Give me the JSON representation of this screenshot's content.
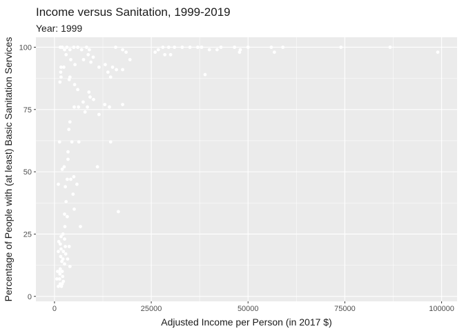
{
  "chart_data": {
    "type": "scatter",
    "title": "Income versus Sanitation, 1999-2019",
    "subtitle": "Year: 1999",
    "xlabel": "Adjusted Income per Person (in 2017 $)",
    "ylabel": "Percentage of People with (at least) Basic Sanitation Services",
    "xlim": [
      -4800,
      104000
    ],
    "ylim": [
      -2,
      104
    ],
    "x_ticks": [
      0,
      25000,
      50000,
      75000,
      100000
    ],
    "x_tick_labels": [
      "0",
      "25000",
      "50000",
      "75000",
      "100000"
    ],
    "y_ticks": [
      0,
      25,
      50,
      75,
      100
    ],
    "y_tick_labels": [
      "0",
      "25",
      "50",
      "75",
      "100"
    ],
    "grid": true,
    "legend": "none",
    "colors": {
      "panel_bg": "#ebebeb",
      "grid": "#ffffff",
      "point": "#ffffff"
    },
    "points": [
      [
        1500,
        100
      ],
      [
        1700,
        92
      ],
      [
        2000,
        100
      ],
      [
        2600,
        99
      ],
      [
        3200,
        100
      ],
      [
        4000,
        99
      ],
      [
        5000,
        100
      ],
      [
        6000,
        100
      ],
      [
        7000,
        99
      ],
      [
        8300,
        100
      ],
      [
        9000,
        99
      ],
      [
        15800,
        100
      ],
      [
        17600,
        99
      ],
      [
        26800,
        99
      ],
      [
        28000,
        100
      ],
      [
        29500,
        100
      ],
      [
        31000,
        100
      ],
      [
        33000,
        100
      ],
      [
        35000,
        100
      ],
      [
        37000,
        100
      ],
      [
        38000,
        100
      ],
      [
        40000,
        99
      ],
      [
        42000,
        99
      ],
      [
        43000,
        100
      ],
      [
        46500,
        100
      ],
      [
        48000,
        99
      ],
      [
        50000,
        100
      ],
      [
        56000,
        100
      ],
      [
        59000,
        100
      ],
      [
        74000,
        100
      ],
      [
        86700,
        100
      ],
      [
        26000,
        98
      ],
      [
        28500,
        97
      ],
      [
        30000,
        97
      ],
      [
        38900,
        89
      ],
      [
        47800,
        98
      ],
      [
        56800,
        98
      ],
      [
        99000,
        98
      ],
      [
        18500,
        98
      ],
      [
        19500,
        95
      ],
      [
        3000,
        97
      ],
      [
        4200,
        95
      ],
      [
        5300,
        93
      ],
      [
        2400,
        92
      ],
      [
        1600,
        90
      ],
      [
        1700,
        88
      ],
      [
        4000,
        88
      ],
      [
        5200,
        85
      ],
      [
        8700,
        97
      ],
      [
        10000,
        96
      ],
      [
        7500,
        95
      ],
      [
        9400,
        94
      ],
      [
        11500,
        92
      ],
      [
        13100,
        93
      ],
      [
        13800,
        90
      ],
      [
        15000,
        92
      ],
      [
        14500,
        88
      ],
      [
        16000,
        91
      ],
      [
        17600,
        91
      ],
      [
        1400,
        86
      ],
      [
        3800,
        87
      ],
      [
        6000,
        83
      ],
      [
        8900,
        82
      ],
      [
        9200,
        80
      ],
      [
        10100,
        79
      ],
      [
        7400,
        78
      ],
      [
        8500,
        76
      ],
      [
        6200,
        76
      ],
      [
        5100,
        76
      ],
      [
        7900,
        74
      ],
      [
        11500,
        73
      ],
      [
        13000,
        77
      ],
      [
        14200,
        76
      ],
      [
        17600,
        77
      ],
      [
        14500,
        62
      ],
      [
        11100,
        52
      ],
      [
        16500,
        34
      ],
      [
        6300,
        62
      ],
      [
        4000,
        70
      ],
      [
        3700,
        67
      ],
      [
        4500,
        62
      ],
      [
        1300,
        62
      ],
      [
        3500,
        58
      ],
      [
        3500,
        55
      ],
      [
        2500,
        52
      ],
      [
        2000,
        51
      ],
      [
        1000,
        45
      ],
      [
        5800,
        45
      ],
      [
        5000,
        48
      ],
      [
        4200,
        47
      ],
      [
        3300,
        47
      ],
      [
        2800,
        44
      ],
      [
        4800,
        41
      ],
      [
        3000,
        38
      ],
      [
        5100,
        35
      ],
      [
        2600,
        33
      ],
      [
        3300,
        32
      ],
      [
        2700,
        28
      ],
      [
        6700,
        28
      ],
      [
        2200,
        25
      ],
      [
        1700,
        24
      ],
      [
        2600,
        23
      ],
      [
        1100,
        22
      ],
      [
        1500,
        21
      ],
      [
        2800,
        20
      ],
      [
        3800,
        20
      ],
      [
        1700,
        19
      ],
      [
        1000,
        18
      ],
      [
        2300,
        18
      ],
      [
        2900,
        17
      ],
      [
        1600,
        16
      ],
      [
        2200,
        15
      ],
      [
        3400,
        15
      ],
      [
        1900,
        14
      ],
      [
        2600,
        13
      ],
      [
        4000,
        12
      ],
      [
        1500,
        11
      ],
      [
        800,
        10
      ],
      [
        1200,
        10
      ],
      [
        2000,
        10
      ],
      [
        1400,
        9
      ],
      [
        2100,
        8
      ],
      [
        600,
        7
      ],
      [
        1300,
        7
      ],
      [
        2300,
        6
      ],
      [
        1500,
        5
      ],
      [
        2000,
        5
      ],
      [
        1800,
        4
      ],
      [
        1000,
        4
      ]
    ]
  }
}
